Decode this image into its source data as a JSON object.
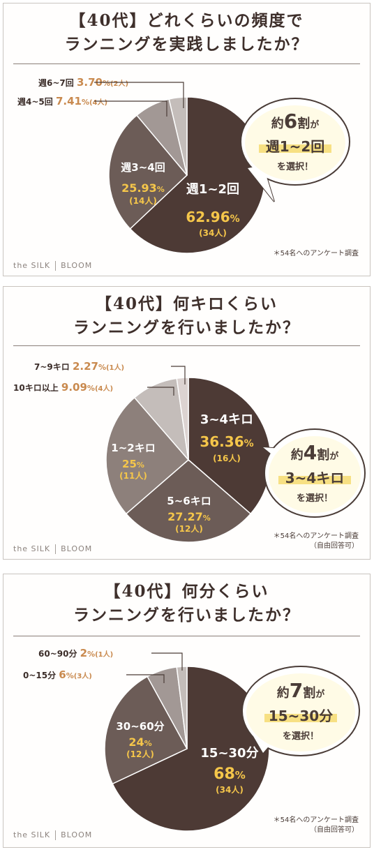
{
  "brand": {
    "name": "the SILK",
    "sub": "BLOOM"
  },
  "chart_data": [
    {
      "type": "pie",
      "title_line1": "【40代】どれくらいの頻度で",
      "title_line2": "ランニングを実践しましたか？",
      "slices": [
        {
          "label": "週1~2回",
          "percent": "62.96",
          "count": "(34人)",
          "value": 62.96,
          "color": "#4d3a35"
        },
        {
          "label": "週3~4回",
          "percent": "25.93",
          "count": "(14人)",
          "value": 25.93,
          "color": "#6c5c57"
        },
        {
          "label": "週4~5回",
          "percent": "7.41",
          "count": "(4人)",
          "value": 7.41,
          "color": "#a29895"
        },
        {
          "label": "週6~7回",
          "percent": "3.70",
          "count": "(2人)",
          "value": 3.7,
          "color": "#c4bdba"
        }
      ],
      "callout": {
        "line1_a": "約",
        "line1_b": "6",
        "line1_c": "割",
        "line1_d": "が",
        "line2": "週1~2回",
        "line3": "を選択！"
      },
      "note": {
        "line1": "＊54名へのアンケート調査",
        "line2": ""
      }
    },
    {
      "type": "pie",
      "title_line1": "【40代】何キロくらい",
      "title_line2": "ランニングを行いましたか？",
      "slices": [
        {
          "label": "3~4キロ",
          "percent": "36.36",
          "count": "(16人)",
          "value": 36.36,
          "color": "#4d3a35"
        },
        {
          "label": "5~6キロ",
          "percent": "27.27",
          "count": "(12人)",
          "value": 27.27,
          "color": "#6c5c57"
        },
        {
          "label": "1~2キロ",
          "percent": "25",
          "count": "(11人)",
          "value": 25,
          "color": "#8d807b"
        },
        {
          "label": "10キロ以上",
          "percent": "9.09",
          "count": "(4人)",
          "value": 9.09,
          "color": "#c4bdba"
        },
        {
          "label": "7~9キロ",
          "percent": "2.27",
          "count": "(1人)",
          "value": 2.27,
          "color": "#dcd3d1"
        }
      ],
      "callout": {
        "line1_a": "約",
        "line1_b": "4",
        "line1_c": "割",
        "line1_d": "が",
        "line2": "3~4キロ",
        "line3": "を選択！"
      },
      "note": {
        "line1": "＊54名へのアンケート調査",
        "line2": "（自由回答可）"
      }
    },
    {
      "type": "pie",
      "title_line1": "【40代】何分くらい",
      "title_line2": "ランニングを行いましたか？",
      "slices": [
        {
          "label": "15~30分",
          "percent": "68",
          "count": "(34人)",
          "value": 68,
          "color": "#4d3a35"
        },
        {
          "label": "30~60分",
          "percent": "24",
          "count": "(12人)",
          "value": 24,
          "color": "#6c5c57"
        },
        {
          "label": "0~15分",
          "percent": "6",
          "count": "(3人)",
          "value": 6,
          "color": "#a29895"
        },
        {
          "label": "60~90分",
          "percent": "2",
          "count": "(1人)",
          "value": 2,
          "color": "#c4bdba"
        }
      ],
      "callout": {
        "line1_a": "約",
        "line1_b": "7",
        "line1_c": "割",
        "line1_d": "が",
        "line2": "15~30分",
        "line3": "を選択！"
      },
      "note": {
        "line1": "＊54名へのアンケート調査",
        "line2": "（自由回答可）"
      }
    }
  ]
}
